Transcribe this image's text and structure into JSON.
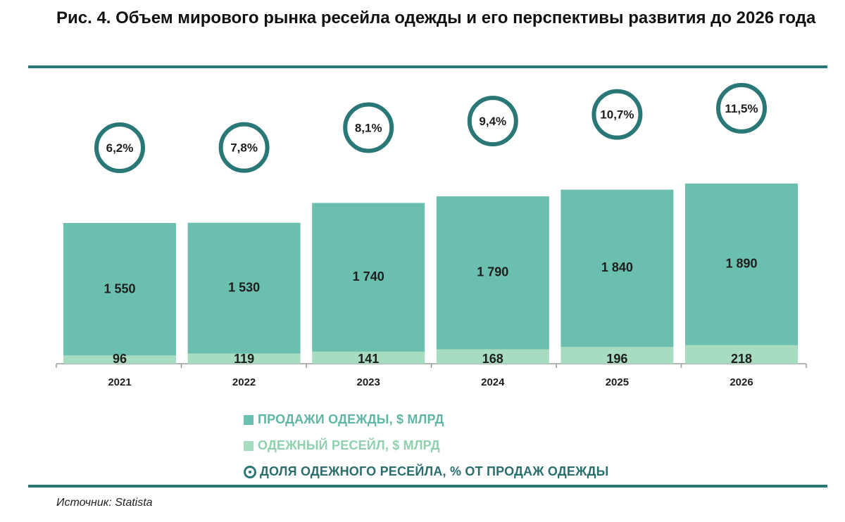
{
  "title": "Рис. 4. Объем мирового рынка ресейла одежды и его перспективы развития до 2026 года",
  "colors": {
    "sales": "#6bbfae",
    "resale": "#a7dcc0",
    "share_ring": "#2a7777",
    "rule": "#2a7777",
    "legend_sales_text": "#5fb6a4",
    "legend_resale_text": "#8fd0ad",
    "legend_share_text": "#2a6e6e"
  },
  "chart_data": {
    "type": "bar",
    "stacked": true,
    "categories": [
      "2021",
      "2022",
      "2023",
      "2024",
      "2025",
      "2026"
    ],
    "series": [
      {
        "name": "ПРОДАЖИ ОДЕЖДЫ, $ МЛРД",
        "values": [
          1550,
          1530,
          1740,
          1790,
          1840,
          1890
        ],
        "labels": [
          "1 550",
          "1 530",
          "1 740",
          "1 790",
          "1 840",
          "1 890"
        ]
      },
      {
        "name": "ОДЕЖНЫЙ РЕСЕЙЛ, $ МЛРД",
        "values": [
          96,
          119,
          141,
          168,
          196,
          218
        ],
        "labels": [
          "96",
          "119",
          "141",
          "168",
          "196",
          "218"
        ]
      }
    ],
    "share": {
      "name": "ДОЛЯ ОДЕЖНОГО РЕСЕЙЛА, % ОТ ПРОДАЖ ОДЕЖДЫ",
      "values": [
        6.2,
        7.8,
        8.1,
        9.4,
        10.7,
        11.5
      ],
      "labels": [
        "6,2%",
        "7,8%",
        "8,1%",
        "9,4%",
        "10,7%",
        "11,5%"
      ]
    },
    "ylim": [
      0,
      2100
    ]
  },
  "legend": {
    "sales": "ПРОДАЖИ ОДЕЖДЫ, $ МЛРД",
    "resale": "ОДЕЖНЫЙ РЕСЕЙЛ, $ МЛРД",
    "share": "ДОЛЯ ОДЕЖНОГО РЕСЕЙЛА, % ОТ ПРОДАЖ ОДЕЖДЫ"
  },
  "source": "Источник: Statista"
}
